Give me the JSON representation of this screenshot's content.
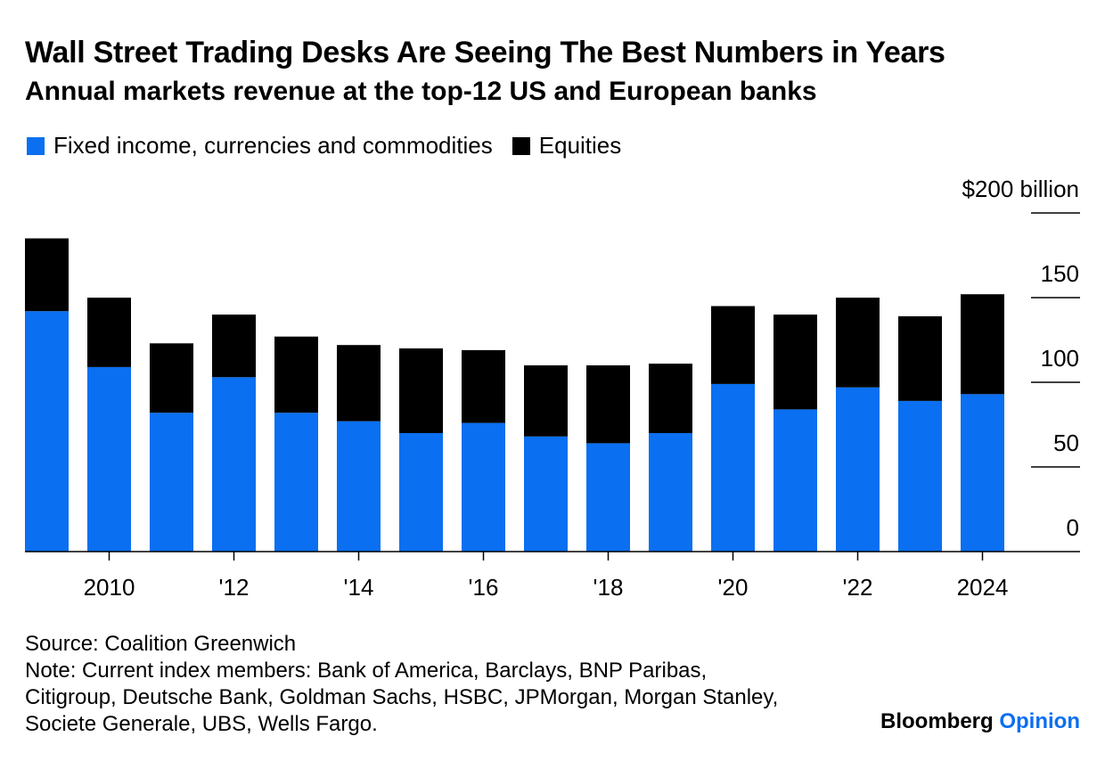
{
  "header": {
    "title": "Wall Street Trading Desks Are Seeing The Best Numbers in Years",
    "subtitle": "Annual markets revenue at the top-12 US and European banks"
  },
  "colors": {
    "ficc": "#0a6ff0",
    "equities": "#000000",
    "axis": "#000000",
    "brand_accent": "#0a6ff0"
  },
  "chart_data": {
    "type": "bar",
    "stacked": true,
    "categories": [
      "2009",
      "2010",
      "2011",
      "2012",
      "2013",
      "2014",
      "2015",
      "2016",
      "2017",
      "2018",
      "2019",
      "2020",
      "2021",
      "2022",
      "2023",
      "2024"
    ],
    "x_tick_labels": [
      "2010",
      "'12",
      "'14",
      "'16",
      "'18",
      "'20",
      "'22",
      "2024"
    ],
    "x_tick_categories": [
      "2010",
      "2012",
      "2014",
      "2016",
      "2018",
      "2020",
      "2022",
      "2024"
    ],
    "series": [
      {
        "name": "Fixed income, currencies and commodities",
        "values": [
          142,
          109,
          82,
          103,
          82,
          77,
          70,
          76,
          68,
          64,
          70,
          99,
          84,
          97,
          89,
          93
        ]
      },
      {
        "name": "Equities",
        "values": [
          43,
          41,
          41,
          37,
          45,
          45,
          50,
          43,
          42,
          46,
          41,
          46,
          56,
          53,
          50,
          59
        ]
      }
    ],
    "y_unit_label": "$200 billion",
    "y_ticks": [
      0,
      50,
      100,
      150,
      200
    ],
    "y_tick_labels": [
      "0",
      "50",
      "100",
      "150",
      "$200 billion"
    ],
    "ylim": [
      0,
      200
    ],
    "legend_position": "top-left",
    "grid": false
  },
  "footer": {
    "source": "Source: Coalition Greenwich",
    "note_lines": [
      "Note: Current index members: Bank of America, Barclays, BNP Paribas,",
      "Citigroup, Deutsche Bank, Goldman Sachs, HSBC, JPMorgan, Morgan Stanley,",
      "Societe Generale, UBS, Wells Fargo."
    ]
  },
  "brand": {
    "name": "Bloomberg",
    "section": "Opinion"
  }
}
